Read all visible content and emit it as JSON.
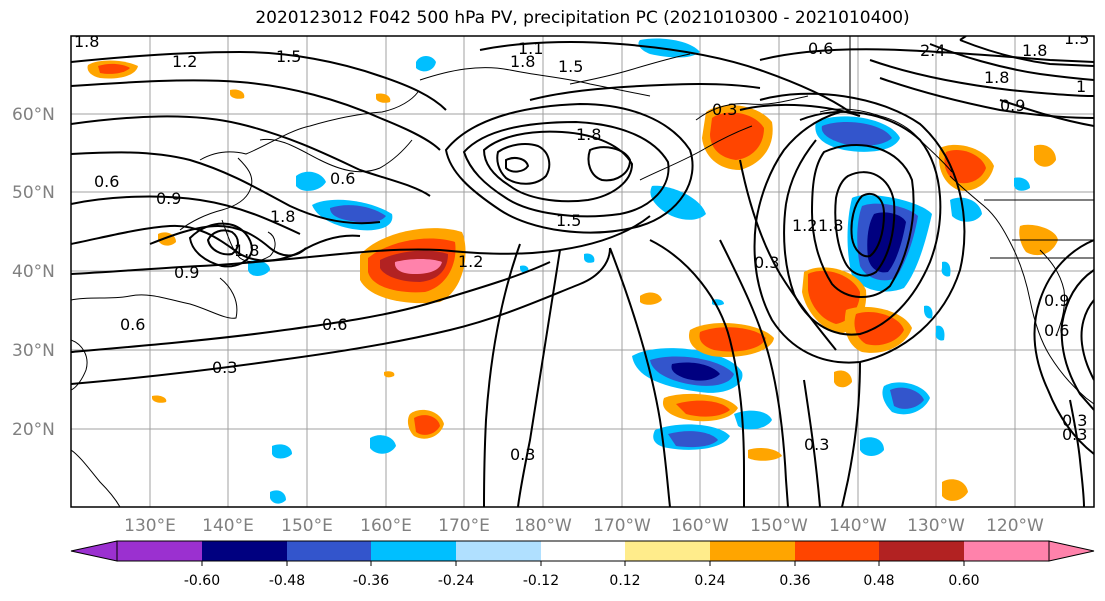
{
  "title": "2020123012 F042 500 hPa PV, precipitation PC (2021010300 - 2021010400)",
  "latitude_labels": [
    "60°N",
    "50°N",
    "40°N",
    "30°N",
    "20°N"
  ],
  "longitude_labels": [
    "130°E",
    "140°E",
    "150°E",
    "160°E",
    "170°E",
    "180°W",
    "170°W",
    "160°W",
    "150°W",
    "140°W",
    "130°W",
    "120°W"
  ],
  "contour_labels": [
    "1.8",
    "1.2",
    "1.5",
    "1.1",
    "1.8",
    "1.5",
    "0.6",
    "2.4",
    "1.8",
    "1.5",
    "1.8",
    "0.9",
    "1",
    "0.3",
    "0.6",
    "0.9",
    "1.8",
    "1.8",
    "0.6",
    "1.5",
    "1.2",
    "0.3",
    "1.8",
    "1.2",
    "0.9",
    "1.8",
    "0.9",
    "0.6",
    "0.3",
    "0.3",
    "0.3",
    "0.3",
    "0.6",
    "0.3",
    "0.6"
  ],
  "colorbar": {
    "colors": [
      "#9b30d0",
      "#000080",
      "#3355cc",
      "#00bfff",
      "#b0e0ff",
      "#ffffff",
      "#ffec8b",
      "#ffa500",
      "#ff4500",
      "#b22222",
      "#ff82ab"
    ],
    "tick_labels": [
      "-0.60",
      "-0.48",
      "-0.36",
      "-0.24",
      "-0.12",
      "0.12",
      "0.24",
      "0.36",
      "0.48",
      "0.60"
    ]
  }
}
